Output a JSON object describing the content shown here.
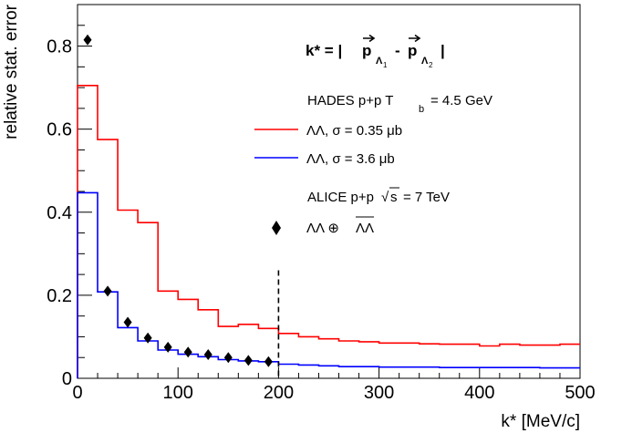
{
  "chart_data": {
    "type": "line",
    "xlabel": "k* [MeV/c]",
    "ylabel": "relative stat. error",
    "xlim": [
      0,
      500
    ],
    "ylim": [
      0,
      0.9
    ],
    "x_ticks": [
      "0",
      "100",
      "200",
      "300",
      "400",
      "500"
    ],
    "y_ticks": [
      "0",
      "0.2",
      "0.4",
      "0.6",
      "0.8"
    ],
    "annotation_formula": {
      "lhs": "k* = |",
      "p1_letter": "p",
      "p1_sub": "Λ",
      "p1_subsub": "1",
      "minus": "-",
      "p2_letter": "p",
      "p2_sub": "Λ",
      "p2_subsub": "2",
      "rhs": "|"
    },
    "hades_header": {
      "prefix": "HADES p+p T",
      "sub": "b",
      "suffix": "= 4.5 GeV"
    },
    "alice_header": {
      "prefix": "ALICE p+p",
      "sqrt": "√",
      "sqrt_arg": "s",
      "suffix": "= 7 TeV"
    },
    "cut_line_x": 200,
    "series": [
      {
        "name": "ΛΛ, σ = 0.35 μb",
        "color": "#ff0000",
        "style": "step",
        "edges": [
          0,
          20,
          40,
          60,
          80,
          100,
          120,
          140,
          160,
          180,
          200,
          220,
          240,
          260,
          280,
          300,
          320,
          340,
          360,
          380,
          400,
          420,
          440,
          460,
          480,
          500
        ],
        "values": [
          0.705,
          0.575,
          0.405,
          0.375,
          0.21,
          0.19,
          0.165,
          0.125,
          0.13,
          0.12,
          0.108,
          0.1,
          0.095,
          0.09,
          0.088,
          0.085,
          0.085,
          0.083,
          0.082,
          0.082,
          0.078,
          0.082,
          0.08,
          0.08,
          0.082
        ]
      },
      {
        "name": "ΛΛ, σ = 3.6 μb",
        "color": "#0000ff",
        "style": "step",
        "edges": [
          0,
          20,
          40,
          60,
          80,
          100,
          120,
          140,
          160,
          180,
          200,
          220,
          240,
          260,
          280,
          300,
          320,
          340,
          360,
          380,
          400,
          420,
          440,
          460,
          480,
          500
        ],
        "values": [
          0.447,
          0.208,
          0.122,
          0.09,
          0.068,
          0.058,
          0.052,
          0.045,
          0.042,
          0.04,
          0.034,
          0.032,
          0.03,
          0.028,
          0.028,
          0.027,
          0.027,
          0.027,
          0.026,
          0.026,
          0.026,
          0.026,
          0.026,
          0.025,
          0.025
        ]
      },
      {
        "name": "ΛΛ ⊕ ΛΛ",
        "name_base": "ΛΛ ⊕",
        "name_bar": "ΛΛ",
        "color": "#000000",
        "style": "marker",
        "marker": "diamond",
        "x": [
          10,
          30,
          50,
          70,
          90,
          110,
          130,
          150,
          170,
          190
        ],
        "y": [
          0.815,
          0.21,
          0.135,
          0.097,
          0.075,
          0.063,
          0.057,
          0.05,
          0.043,
          0.04
        ]
      }
    ]
  }
}
